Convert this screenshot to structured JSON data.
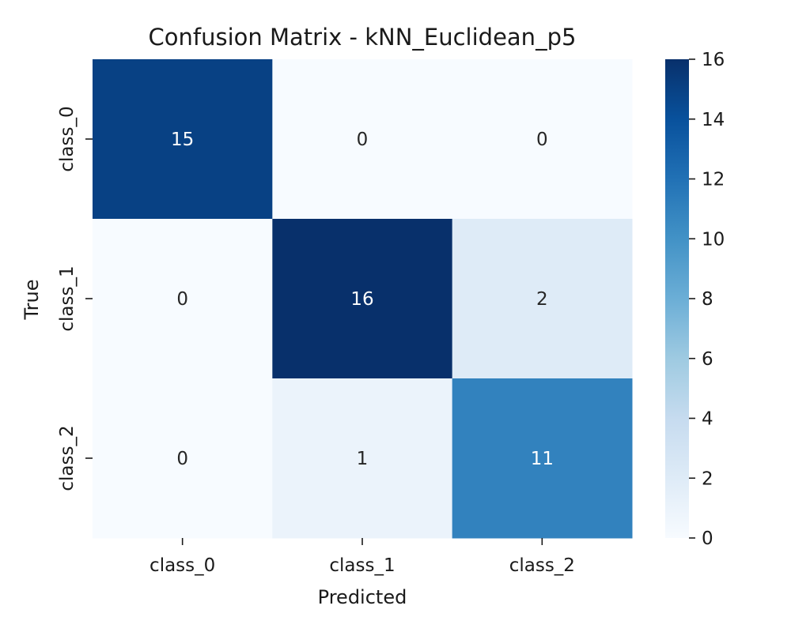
{
  "chart_data": {
    "type": "heatmap",
    "title": "Confusion Matrix - kNN_Euclidean_p5",
    "xlabel": "Predicted",
    "ylabel": "True",
    "x_categories": [
      "class_0",
      "class_1",
      "class_2"
    ],
    "y_categories": [
      "class_0",
      "class_1",
      "class_2"
    ],
    "values": [
      [
        15,
        0,
        0
      ],
      [
        0,
        16,
        2
      ],
      [
        0,
        1,
        11
      ]
    ],
    "colormap": "Blues",
    "colorbar": {
      "range": [
        0,
        16
      ],
      "ticks": [
        0,
        2,
        4,
        6,
        8,
        10,
        12,
        14,
        16
      ]
    },
    "colors": {
      "low": "#f7fbff",
      "high": "#08306b",
      "text_dark": "#262626",
      "text_light": "#ffffff"
    }
  }
}
